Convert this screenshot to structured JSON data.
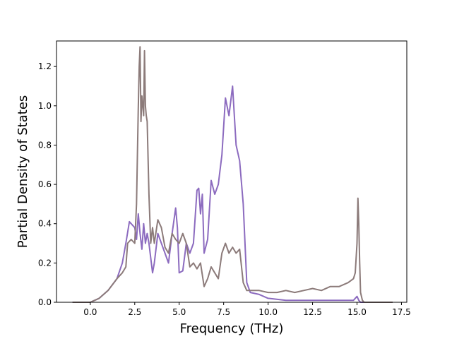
{
  "chart_data": {
    "type": "line",
    "title": "",
    "xlabel": "Frequency (THz)",
    "ylabel": "Partial Density of States",
    "xlim": [
      -1.9,
      17.8
    ],
    "ylim": [
      0,
      1.33
    ],
    "xticks": [
      0.0,
      2.5,
      5.0,
      7.5,
      10.0,
      12.5,
      15.0,
      17.5
    ],
    "xtick_labels": [
      "0.0",
      "2.5",
      "5.0",
      "7.5",
      "10.0",
      "12.5",
      "15.0",
      "17.5"
    ],
    "yticks": [
      0.0,
      0.2,
      0.4,
      0.6,
      0.8,
      1.0,
      1.2
    ],
    "ytick_labels": [
      "0.0",
      "0.2",
      "0.4",
      "0.6",
      "0.8",
      "1.0",
      "1.2"
    ],
    "grid": false,
    "legend": "none",
    "series": [
      {
        "color": "#8c6bbf",
        "x": [
          -1.0,
          0.0,
          0.5,
          1.0,
          1.5,
          1.8,
          2.0,
          2.2,
          2.5,
          2.6,
          2.7,
          2.8,
          2.9,
          3.0,
          3.1,
          3.2,
          3.3,
          3.5,
          3.6,
          3.8,
          4.0,
          4.2,
          4.4,
          4.6,
          4.8,
          4.9,
          5.0,
          5.2,
          5.4,
          5.6,
          5.8,
          6.0,
          6.1,
          6.2,
          6.3,
          6.4,
          6.6,
          6.8,
          7.0,
          7.2,
          7.4,
          7.6,
          7.8,
          8.0,
          8.2,
          8.4,
          8.6,
          8.8,
          9.0,
          9.5,
          10.0,
          11.0,
          12.0,
          13.0,
          14.0,
          14.8,
          15.0,
          15.1,
          15.2,
          15.4,
          16.0,
          17.0
        ],
        "y": [
          0.0,
          0.0,
          0.02,
          0.06,
          0.12,
          0.2,
          0.3,
          0.41,
          0.38,
          0.32,
          0.45,
          0.35,
          0.27,
          0.4,
          0.3,
          0.35,
          0.3,
          0.15,
          0.2,
          0.35,
          0.3,
          0.25,
          0.2,
          0.35,
          0.48,
          0.38,
          0.15,
          0.16,
          0.3,
          0.25,
          0.3,
          0.57,
          0.58,
          0.45,
          0.55,
          0.25,
          0.32,
          0.62,
          0.55,
          0.6,
          0.75,
          1.04,
          0.95,
          1.1,
          0.8,
          0.72,
          0.5,
          0.1,
          0.05,
          0.04,
          0.02,
          0.01,
          0.01,
          0.01,
          0.01,
          0.01,
          0.03,
          0.01,
          0.0,
          0.0,
          0.0,
          0.0
        ]
      },
      {
        "color": "#8c7b7a",
        "x": [
          -1.0,
          0.0,
          0.5,
          1.0,
          1.5,
          1.8,
          2.0,
          2.1,
          2.3,
          2.5,
          2.6,
          2.7,
          2.75,
          2.8,
          2.85,
          2.9,
          3.0,
          3.05,
          3.1,
          3.15,
          3.2,
          3.3,
          3.4,
          3.5,
          3.6,
          3.8,
          4.0,
          4.2,
          4.4,
          4.6,
          4.8,
          5.0,
          5.2,
          5.4,
          5.6,
          5.8,
          6.0,
          6.2,
          6.4,
          6.6,
          6.8,
          7.0,
          7.2,
          7.4,
          7.6,
          7.8,
          8.0,
          8.2,
          8.4,
          8.6,
          8.8,
          9.0,
          9.5,
          10.0,
          10.5,
          11.0,
          11.5,
          12.0,
          12.5,
          13.0,
          13.5,
          14.0,
          14.5,
          14.8,
          14.9,
          15.0,
          15.05,
          15.1,
          15.15,
          15.2,
          15.3,
          15.4,
          16.0,
          17.0
        ],
        "y": [
          0.0,
          0.0,
          0.02,
          0.06,
          0.12,
          0.15,
          0.18,
          0.3,
          0.32,
          0.3,
          0.5,
          0.99,
          1.2,
          1.3,
          0.92,
          1.05,
          0.95,
          1.28,
          1.0,
          0.95,
          0.92,
          0.55,
          0.3,
          0.38,
          0.3,
          0.42,
          0.38,
          0.28,
          0.25,
          0.35,
          0.32,
          0.3,
          0.35,
          0.3,
          0.18,
          0.2,
          0.17,
          0.2,
          0.08,
          0.12,
          0.18,
          0.15,
          0.12,
          0.25,
          0.3,
          0.25,
          0.28,
          0.25,
          0.27,
          0.1,
          0.06,
          0.06,
          0.06,
          0.05,
          0.05,
          0.06,
          0.05,
          0.06,
          0.07,
          0.06,
          0.08,
          0.08,
          0.1,
          0.12,
          0.15,
          0.3,
          0.53,
          0.4,
          0.2,
          0.05,
          0.01,
          0.0,
          0.0,
          0.0
        ]
      }
    ]
  }
}
